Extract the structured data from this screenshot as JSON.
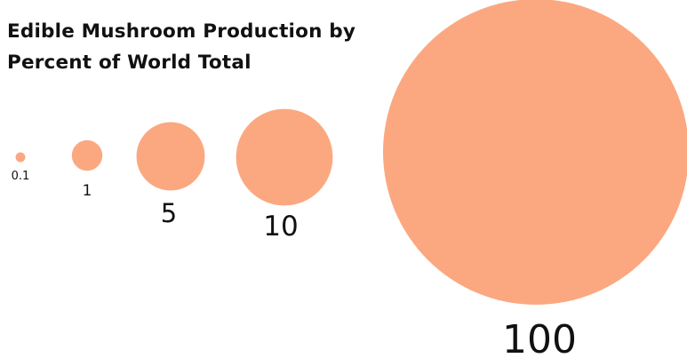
{
  "chart_data": {
    "type": "bubble",
    "title_lines": [
      "Edible Mushroom Production by",
      "Percent of World Total"
    ],
    "categories": [
      "0.1",
      "1",
      "5",
      "10",
      "100"
    ],
    "values": [
      0.1,
      1,
      5,
      10,
      100
    ],
    "bubble_color": "#FBA881",
    "label_color": "#111111"
  }
}
